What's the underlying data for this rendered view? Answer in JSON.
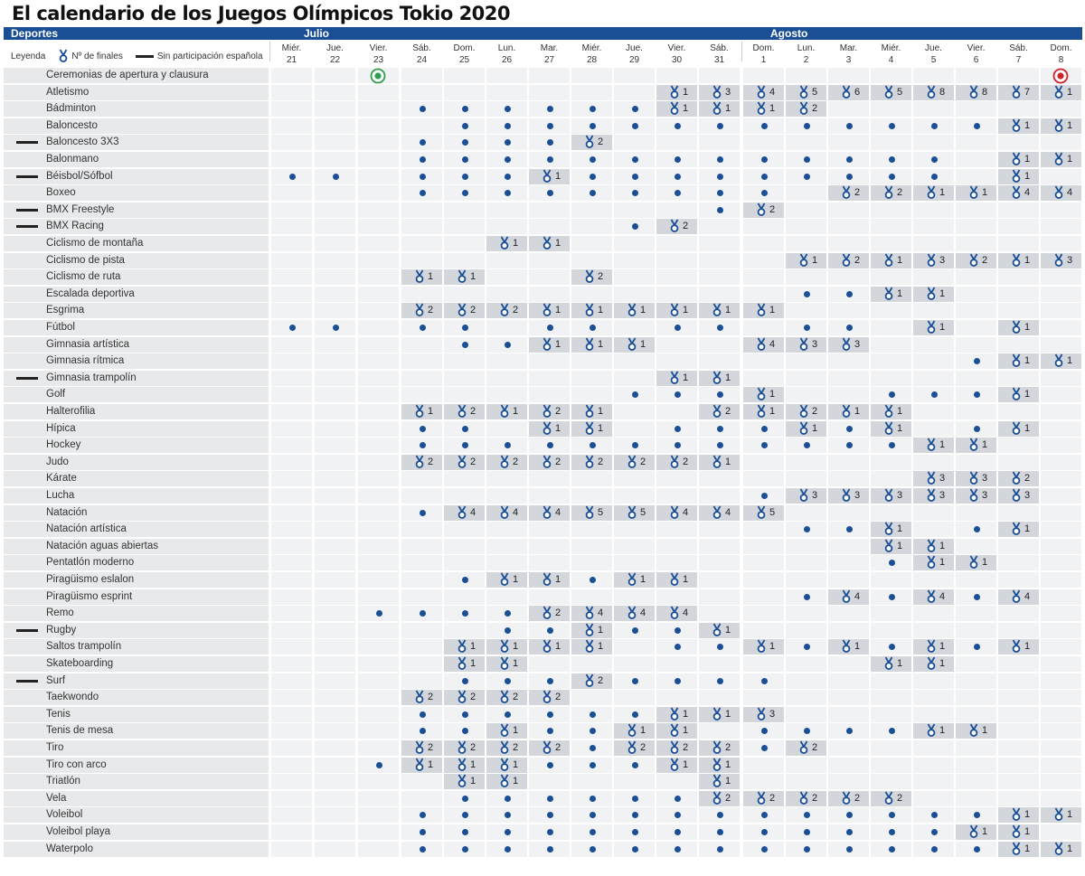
{
  "title": "El calendario de los Juegos Olímpicos Tokio 2020",
  "header": {
    "deportes": "Deportes",
    "julio": "Julio",
    "agosto": "Agosto"
  },
  "legend": {
    "label": "Leyenda",
    "finals": "Nº de finales",
    "no_spain": "Sin participación española"
  },
  "colors": {
    "header_bar": "#1a4f96",
    "dot": "#1a4f96",
    "medal": "#1a4f96",
    "medal_cell": "#d3d6db",
    "opening": "#2e9e4f",
    "closing": "#d0202a"
  },
  "days": [
    {
      "name": "Miér.",
      "num": "21"
    },
    {
      "name": "Jue.",
      "num": "22"
    },
    {
      "name": "Vier.",
      "num": "23"
    },
    {
      "name": "Sáb.",
      "num": "24"
    },
    {
      "name": "Dom.",
      "num": "25"
    },
    {
      "name": "Lun.",
      "num": "26"
    },
    {
      "name": "Mar.",
      "num": "27"
    },
    {
      "name": "Miér.",
      "num": "28"
    },
    {
      "name": "Jue.",
      "num": "29"
    },
    {
      "name": "Vier.",
      "num": "30"
    },
    {
      "name": "Sáb.",
      "num": "31"
    },
    {
      "name": "Dom.",
      "num": "1"
    },
    {
      "name": "Lun.",
      "num": "2"
    },
    {
      "name": "Mar.",
      "num": "3"
    },
    {
      "name": "Miér.",
      "num": "4"
    },
    {
      "name": "Jue.",
      "num": "5"
    },
    {
      "name": "Vier.",
      "num": "6"
    },
    {
      "name": "Sáb.",
      "num": "7"
    },
    {
      "name": "Dom.",
      "num": "8"
    }
  ],
  "sports": [
    {
      "name": "Ceremonias de  apertura y clausura",
      "no_spain": false,
      "cells": [
        "",
        "",
        "O",
        "",
        "",
        "",
        "",
        "",
        "",
        "",
        "",
        "",
        "",
        "",
        "",
        "",
        "",
        "",
        "C"
      ]
    },
    {
      "name": "Atletismo",
      "no_spain": false,
      "cells": [
        "",
        "",
        "",
        "",
        "",
        "",
        "",
        "",
        "",
        "1",
        "3",
        "4",
        "5",
        "6",
        "5",
        "8",
        "8",
        "7",
        "1"
      ]
    },
    {
      "name": "Bádminton",
      "no_spain": false,
      "cells": [
        "",
        "",
        "",
        "d",
        "d",
        "d",
        "d",
        "d",
        "d",
        "1",
        "1",
        "1",
        "2",
        "",
        "",
        "",
        "",
        "",
        ""
      ]
    },
    {
      "name": "Baloncesto",
      "no_spain": false,
      "cells": [
        "",
        "",
        "",
        "",
        "d",
        "d",
        "d",
        "d",
        "d",
        "d",
        "d",
        "d",
        "d",
        "d",
        "d",
        "d",
        "d",
        "1",
        "1"
      ]
    },
    {
      "name": "Baloncesto 3X3",
      "no_spain": true,
      "cells": [
        "",
        "",
        "",
        "d",
        "d",
        "d",
        "d",
        "2",
        "",
        "",
        "",
        "",
        "",
        "",
        "",
        "",
        "",
        "",
        ""
      ]
    },
    {
      "name": "Balonmano",
      "no_spain": false,
      "cells": [
        "",
        "",
        "",
        "d",
        "d",
        "d",
        "d",
        "d",
        "d",
        "d",
        "d",
        "d",
        "d",
        "d",
        "d",
        "d",
        "",
        "1",
        "1"
      ]
    },
    {
      "name": "Béisbol/Sófbol",
      "no_spain": true,
      "cells": [
        "d",
        "d",
        "",
        "d",
        "d",
        "d",
        "1",
        "d",
        "d",
        "d",
        "d",
        "d",
        "d",
        "d",
        "d",
        "d",
        "",
        "1",
        ""
      ]
    },
    {
      "name": "Boxeo",
      "no_spain": false,
      "cells": [
        "",
        "",
        "",
        "d",
        "d",
        "d",
        "d",
        "d",
        "d",
        "d",
        "d",
        "d",
        "",
        "2",
        "2",
        "1",
        "1",
        "4",
        "4"
      ]
    },
    {
      "name": "BMX Freestyle",
      "no_spain": true,
      "cells": [
        "",
        "",
        "",
        "",
        "",
        "",
        "",
        "",
        "",
        "",
        "d",
        "2",
        "",
        "",
        "",
        "",
        "",
        "",
        ""
      ]
    },
    {
      "name": "BMX Racing",
      "no_spain": true,
      "cells": [
        "",
        "",
        "",
        "",
        "",
        "",
        "",
        "",
        "d",
        "2",
        "",
        "",
        "",
        "",
        "",
        "",
        "",
        "",
        ""
      ]
    },
    {
      "name": "Ciclismo de montaña",
      "no_spain": false,
      "cells": [
        "",
        "",
        "",
        "",
        "",
        "1",
        "1",
        "",
        "",
        "",
        "",
        "",
        "",
        "",
        "",
        "",
        "",
        "",
        ""
      ]
    },
    {
      "name": "Ciclismo de pista",
      "no_spain": false,
      "cells": [
        "",
        "",
        "",
        "",
        "",
        "",
        "",
        "",
        "",
        "",
        "",
        "",
        "1",
        "2",
        "1",
        "3",
        "2",
        "1",
        "3"
      ]
    },
    {
      "name": "Ciclismo de ruta",
      "no_spain": false,
      "cells": [
        "",
        "",
        "",
        "1",
        "1",
        "",
        "",
        "2",
        "",
        "",
        "",
        "",
        "",
        "",
        "",
        "",
        "",
        "",
        ""
      ]
    },
    {
      "name": "Escalada deportiva",
      "no_spain": false,
      "cells": [
        "",
        "",
        "",
        "",
        "",
        "",
        "",
        "",
        "",
        "",
        "",
        "",
        "d",
        "d",
        "1",
        "1",
        "",
        "",
        ""
      ]
    },
    {
      "name": "Esgrima",
      "no_spain": false,
      "cells": [
        "",
        "",
        "",
        "2",
        "2",
        "2",
        "1",
        "1",
        "1",
        "1",
        "1",
        "1",
        "",
        "",
        "",
        "",
        "",
        "",
        ""
      ]
    },
    {
      "name": "Fútbol",
      "no_spain": false,
      "cells": [
        "d",
        "d",
        "",
        "d",
        "d",
        "",
        "d",
        "d",
        "",
        "d",
        "d",
        "",
        "d",
        "d",
        "",
        "1",
        "",
        "1",
        ""
      ]
    },
    {
      "name": "Gimnasia artística",
      "no_spain": false,
      "cells": [
        "",
        "",
        "",
        "",
        "d",
        "d",
        "1",
        "1",
        "1",
        "",
        "",
        "4",
        "3",
        "3",
        "",
        "",
        "",
        "",
        ""
      ]
    },
    {
      "name": "Gimnasia rítmica",
      "no_spain": false,
      "cells": [
        "",
        "",
        "",
        "",
        "",
        "",
        "",
        "",
        "",
        "",
        "",
        "",
        "",
        "",
        "",
        "",
        "d",
        "1",
        "1"
      ]
    },
    {
      "name": "Gimnasia trampolín",
      "no_spain": true,
      "cells": [
        "",
        "",
        "",
        "",
        "",
        "",
        "",
        "",
        "",
        "1",
        "1",
        "",
        "",
        "",
        "",
        "",
        "",
        "",
        ""
      ]
    },
    {
      "name": "Golf",
      "no_spain": false,
      "cells": [
        "",
        "",
        "",
        "",
        "",
        "",
        "",
        "",
        "d",
        "d",
        "d",
        "1",
        "",
        "",
        "d",
        "d",
        "d",
        "1",
        ""
      ]
    },
    {
      "name": "Halterofilia",
      "no_spain": false,
      "cells": [
        "",
        "",
        "",
        "1",
        "2",
        "1",
        "2",
        "1",
        "",
        "",
        "2",
        "1",
        "2",
        "1",
        "1",
        "",
        "",
        "",
        ""
      ]
    },
    {
      "name": "Hípica",
      "no_spain": false,
      "cells": [
        "",
        "",
        "",
        "d",
        "d",
        "",
        "1",
        "1",
        "",
        "d",
        "d",
        "d",
        "1",
        "d",
        "1",
        "",
        "d",
        "1",
        ""
      ]
    },
    {
      "name": "Hockey",
      "no_spain": false,
      "cells": [
        "",
        "",
        "",
        "d",
        "d",
        "d",
        "d",
        "d",
        "d",
        "d",
        "d",
        "d",
        "d",
        "d",
        "d",
        "1",
        "1",
        "",
        ""
      ]
    },
    {
      "name": "Judo",
      "no_spain": false,
      "cells": [
        "",
        "",
        "",
        "2",
        "2",
        "2",
        "2",
        "2",
        "2",
        "2",
        "1",
        "",
        "",
        "",
        "",
        "",
        "",
        "",
        ""
      ]
    },
    {
      "name": "Kárate",
      "no_spain": false,
      "cells": [
        "",
        "",
        "",
        "",
        "",
        "",
        "",
        "",
        "",
        "",
        "",
        "",
        "",
        "",
        "",
        "3",
        "3",
        "2",
        ""
      ]
    },
    {
      "name": "Lucha",
      "no_spain": false,
      "cells": [
        "",
        "",
        "",
        "",
        "",
        "",
        "",
        "",
        "",
        "",
        "",
        "d",
        "3",
        "3",
        "3",
        "3",
        "3",
        "3",
        ""
      ]
    },
    {
      "name": "Natación",
      "no_spain": false,
      "cells": [
        "",
        "",
        "",
        "d",
        "4",
        "4",
        "4",
        "5",
        "5",
        "4",
        "4",
        "5",
        "",
        "",
        "",
        "",
        "",
        "",
        ""
      ]
    },
    {
      "name": "Natación artística",
      "no_spain": false,
      "cells": [
        "",
        "",
        "",
        "",
        "",
        "",
        "",
        "",
        "",
        "",
        "",
        "",
        "d",
        "d",
        "1",
        "",
        "d",
        "1",
        ""
      ]
    },
    {
      "name": "Natación aguas abiertas",
      "no_spain": false,
      "cells": [
        "",
        "",
        "",
        "",
        "",
        "",
        "",
        "",
        "",
        "",
        "",
        "",
        "",
        "",
        "1",
        "1",
        "",
        "",
        ""
      ]
    },
    {
      "name": "Pentatlón moderno",
      "no_spain": false,
      "cells": [
        "",
        "",
        "",
        "",
        "",
        "",
        "",
        "",
        "",
        "",
        "",
        "",
        "",
        "",
        "d",
        "1",
        "1",
        "",
        ""
      ]
    },
    {
      "name": "Piragüismo eslalon",
      "no_spain": false,
      "cells": [
        "",
        "",
        "",
        "",
        "d",
        "1",
        "1",
        "d",
        "1",
        "1",
        "",
        "",
        "",
        "",
        "",
        "",
        "",
        "",
        ""
      ]
    },
    {
      "name": "Piragüismo esprint",
      "no_spain": false,
      "cells": [
        "",
        "",
        "",
        "",
        "",
        "",
        "",
        "",
        "",
        "",
        "",
        "",
        "d",
        "4",
        "d",
        "4",
        "d",
        "4",
        ""
      ]
    },
    {
      "name": "Remo",
      "no_spain": false,
      "cells": [
        "",
        "",
        "d",
        "d",
        "d",
        "d",
        "2",
        "4",
        "4",
        "4",
        "",
        "",
        "",
        "",
        "",
        "",
        "",
        "",
        ""
      ]
    },
    {
      "name": "Rugby",
      "no_spain": true,
      "cells": [
        "",
        "",
        "",
        "",
        "",
        "d",
        "d",
        "1",
        "d",
        "d",
        "1",
        "",
        "",
        "",
        "",
        "",
        "",
        "",
        ""
      ]
    },
    {
      "name": "Saltos trampolín",
      "no_spain": false,
      "cells": [
        "",
        "",
        "",
        "",
        "1",
        "1",
        "1",
        "1",
        "",
        "d",
        "d",
        "1",
        "d",
        "1",
        "d",
        "1",
        "d",
        "1",
        ""
      ]
    },
    {
      "name": "Skateboarding",
      "no_spain": false,
      "cells": [
        "",
        "",
        "",
        "",
        "1",
        "1",
        "",
        "",
        "",
        "",
        "",
        "",
        "",
        "",
        "1",
        "1",
        "",
        "",
        ""
      ]
    },
    {
      "name": "Surf",
      "no_spain": true,
      "cells": [
        "",
        "",
        "",
        "",
        "d",
        "d",
        "d",
        "2",
        "d",
        "d",
        "d",
        "d",
        "",
        "",
        "",
        "",
        "",
        "",
        ""
      ]
    },
    {
      "name": "Taekwondo",
      "no_spain": false,
      "cells": [
        "",
        "",
        "",
        "2",
        "2",
        "2",
        "2",
        "",
        "",
        "",
        "",
        "",
        "",
        "",
        "",
        "",
        "",
        "",
        ""
      ]
    },
    {
      "name": "Tenis",
      "no_spain": false,
      "cells": [
        "",
        "",
        "",
        "d",
        "d",
        "d",
        "d",
        "d",
        "d",
        "1",
        "1",
        "3",
        "",
        "",
        "",
        "",
        "",
        "",
        ""
      ]
    },
    {
      "name": "Tenis de mesa",
      "no_spain": false,
      "cells": [
        "",
        "",
        "",
        "d",
        "d",
        "1",
        "d",
        "d",
        "1",
        "1",
        "",
        "d",
        "d",
        "d",
        "d",
        "1",
        "1",
        "",
        ""
      ]
    },
    {
      "name": "Tiro",
      "no_spain": false,
      "cells": [
        "",
        "",
        "",
        "2",
        "2",
        "2",
        "2",
        "d",
        "2",
        "2",
        "2",
        "d",
        "2",
        "",
        "",
        "",
        "",
        "",
        ""
      ]
    },
    {
      "name": "Tiro con arco",
      "no_spain": false,
      "cells": [
        "",
        "",
        "d",
        "1",
        "1",
        "1",
        "d",
        "d",
        "d",
        "1",
        "1",
        "",
        "",
        "",
        "",
        "",
        "",
        "",
        ""
      ]
    },
    {
      "name": "Triatlón",
      "no_spain": false,
      "cells": [
        "",
        "",
        "",
        "",
        "1",
        "1",
        "",
        "",
        "",
        "",
        "1",
        "",
        "",
        "",
        "",
        "",
        "",
        "",
        ""
      ]
    },
    {
      "name": "Vela",
      "no_spain": false,
      "cells": [
        "",
        "",
        "",
        "",
        "d",
        "d",
        "d",
        "d",
        "d",
        "d",
        "2",
        "2",
        "2",
        "2",
        "2",
        "",
        "",
        "",
        ""
      ]
    },
    {
      "name": "Voleibol",
      "no_spain": false,
      "cells": [
        "",
        "",
        "",
        "d",
        "d",
        "d",
        "d",
        "d",
        "d",
        "d",
        "d",
        "d",
        "d",
        "d",
        "d",
        "d",
        "d",
        "1",
        "1"
      ]
    },
    {
      "name": "Voleibol playa",
      "no_spain": false,
      "cells": [
        "",
        "",
        "",
        "d",
        "d",
        "d",
        "d",
        "d",
        "d",
        "d",
        "d",
        "d",
        "d",
        "d",
        "d",
        "d",
        "1",
        "1",
        ""
      ]
    },
    {
      "name": "Waterpolo",
      "no_spain": false,
      "cells": [
        "",
        "",
        "",
        "d",
        "d",
        "d",
        "d",
        "d",
        "d",
        "d",
        "d",
        "d",
        "d",
        "d",
        "d",
        "d",
        "d",
        "1",
        "1"
      ]
    }
  ]
}
